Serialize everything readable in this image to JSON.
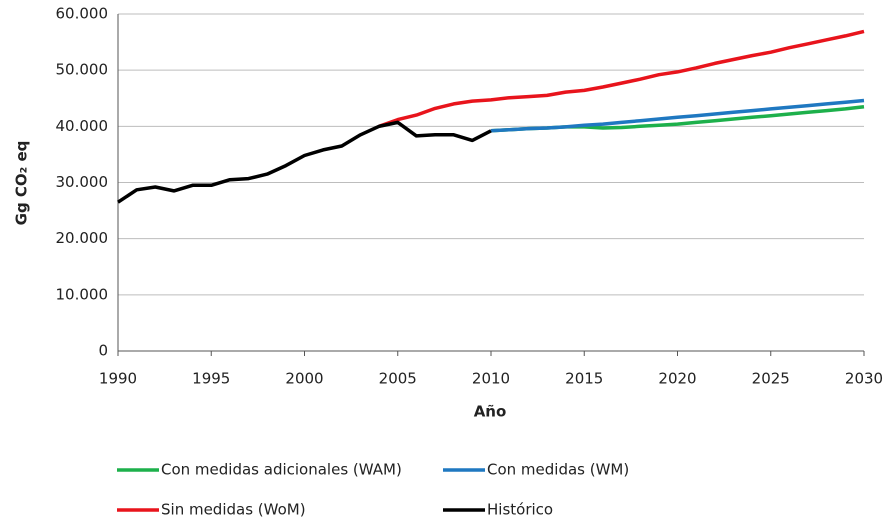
{
  "chart_data": {
    "type": "line",
    "x_label": "Año",
    "y_label": "Gg CO₂ eq",
    "x": [
      1990,
      1991,
      1992,
      1993,
      1994,
      1995,
      1996,
      1997,
      1998,
      1999,
      2000,
      2001,
      2002,
      2003,
      2004,
      2005,
      2006,
      2007,
      2008,
      2009,
      2010,
      2011,
      2012,
      2013,
      2014,
      2015,
      2016,
      2017,
      2018,
      2019,
      2020,
      2021,
      2022,
      2023,
      2024,
      2025,
      2026,
      2027,
      2028,
      2029,
      2030
    ],
    "xlim": [
      1990,
      2030
    ],
    "xticks": [
      1990,
      1995,
      2000,
      2005,
      2010,
      2015,
      2020,
      2025,
      2030
    ],
    "ylim": [
      0,
      60000
    ],
    "yticks": [
      0,
      {
        "value": 10000,
        "label": "10.000"
      },
      {
        "value": 20000,
        "label": "20.000"
      },
      {
        "value": 30000,
        "label": "30.000"
      },
      {
        "value": 40000,
        "label": "40.000"
      },
      {
        "value": 50000,
        "label": "50.000"
      },
      {
        "value": 60000,
        "label": "60.000"
      }
    ],
    "grid": true,
    "legend": "bottom",
    "series": [
      {
        "name": "Con medidas adicionales (WAM)",
        "color": "#1db04b",
        "values": [
          null,
          null,
          null,
          null,
          null,
          null,
          null,
          null,
          null,
          null,
          null,
          null,
          null,
          null,
          null,
          null,
          null,
          null,
          null,
          null,
          39200,
          39400,
          39600,
          39700,
          39900,
          39900,
          39700,
          39800,
          40000,
          40200,
          40400,
          40700,
          41000,
          41300,
          41600,
          41900,
          42200,
          42500,
          42800,
          43100,
          43500
        ]
      },
      {
        "name": "Con medidas (WM)",
        "color": "#1f78c1",
        "values": [
          null,
          null,
          null,
          null,
          null,
          null,
          null,
          null,
          null,
          null,
          null,
          null,
          null,
          null,
          null,
          null,
          null,
          null,
          null,
          null,
          39200,
          39400,
          39600,
          39700,
          39900,
          40200,
          40400,
          40700,
          41000,
          41300,
          41600,
          41900,
          42200,
          42500,
          42800,
          43100,
          43400,
          43700,
          44000,
          44300,
          44600
        ]
      },
      {
        "name": "Sin medidas (WoM)",
        "color": "#e8141c",
        "values": [
          null,
          null,
          null,
          null,
          null,
          null,
          null,
          null,
          null,
          null,
          null,
          null,
          null,
          null,
          40000,
          41200,
          42000,
          43200,
          44000,
          44500,
          44700,
          45100,
          45300,
          45500,
          46100,
          46400,
          47000,
          47700,
          48400,
          49200,
          49700,
          50400,
          51200,
          51900,
          52600,
          53200,
          54000,
          54700,
          55400,
          56100,
          56900
        ]
      },
      {
        "name": "Histórico",
        "color": "#000000",
        "values": [
          26500,
          28700,
          29200,
          28500,
          29500,
          29500,
          30500,
          30700,
          31500,
          33000,
          34800,
          35800,
          36500,
          38500,
          40000,
          40700,
          38300,
          38500,
          38500,
          37500,
          39200,
          null,
          null,
          null,
          null,
          null,
          null,
          null,
          null,
          null,
          null,
          null,
          null,
          null,
          null,
          null,
          null,
          null,
          null,
          null,
          null
        ]
      }
    ]
  }
}
